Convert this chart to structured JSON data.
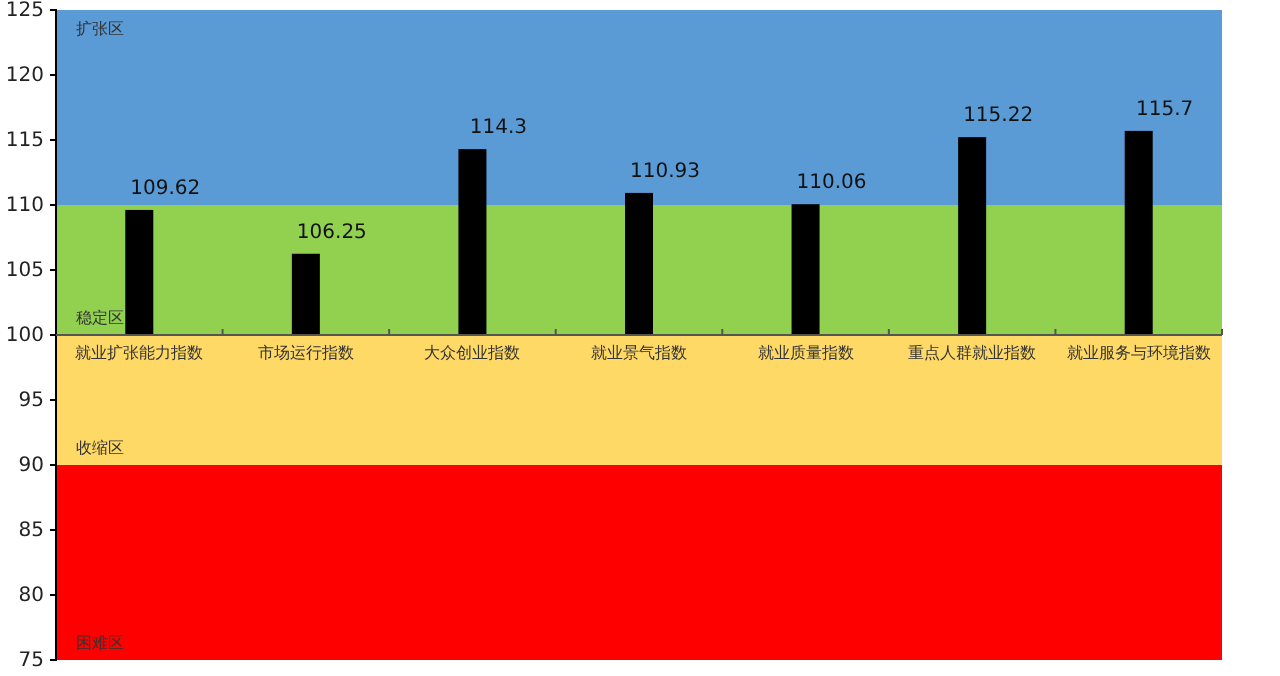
{
  "chart_data": {
    "type": "bar",
    "categories": [
      "就业扩张能力指数",
      "市场运行指数",
      "大众创业指数",
      "就业景气指数",
      "就业质量指数",
      "重点人群就业指数",
      "就业服务与环境指数"
    ],
    "base": [
      100,
      100,
      100,
      100,
      100,
      100,
      100
    ],
    "values": [
      9.62,
      6.25,
      14.3,
      10.93,
      10.06,
      15.22,
      15.7
    ],
    "value_labels": [
      "109.62",
      "106.25",
      "114.3",
      "110.93",
      "110.06",
      "115.22",
      "115.7"
    ],
    "color": "#000000",
    "ylim": [
      75,
      125
    ],
    "yticks": [
      75,
      80,
      85,
      90,
      95,
      100,
      105,
      110,
      115,
      120,
      125
    ],
    "bands": [
      {
        "axis": "y",
        "from": 110,
        "to": 125,
        "label": "扩张区",
        "color": "#5b9bd5"
      },
      {
        "axis": "y",
        "from": 100,
        "to": 110,
        "label": "稳定区",
        "color": "#92d050"
      },
      {
        "axis": "y",
        "from": 90,
        "to": 100,
        "label": "收缩区",
        "color": "#ffd966"
      },
      {
        "axis": "y",
        "from": 75,
        "to": 90,
        "label": "困难区",
        "color": "#ff0000"
      }
    ]
  }
}
